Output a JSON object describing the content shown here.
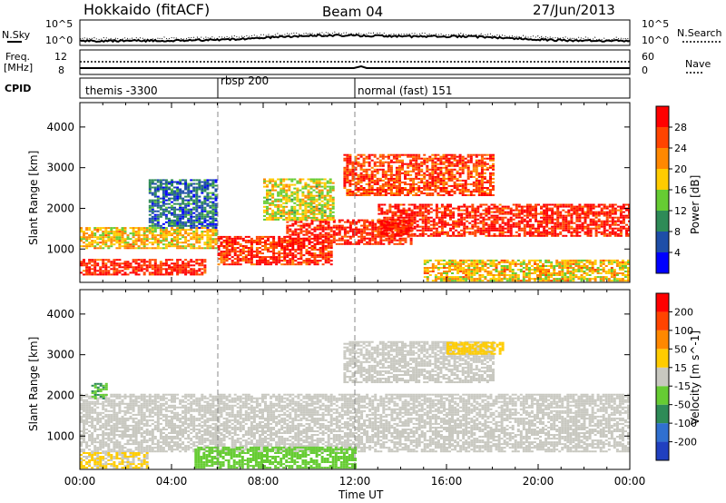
{
  "header": {
    "title": "Hokkaido (fitACF)",
    "beam": "Beam 04",
    "date": "27/Jun/2013"
  },
  "noise_panel": {
    "left_label": "N.Sky",
    "right_label": "N.Search",
    "y_top_label": "10^5",
    "y_bottom_label": "10^0",
    "legend_style": "dotted"
  },
  "freq_panel": {
    "left_label_line1": "Freq.",
    "left_label_line2": "[MHz]",
    "left_ticks": [
      "12",
      "8"
    ],
    "right_label": "Nave",
    "right_ticks": [
      "60",
      "0"
    ],
    "legend_style": "dotted"
  },
  "cpid_panel": {
    "label": "CPID",
    "modes": [
      {
        "name": "themis -3300",
        "start_hour": 0
      },
      {
        "name": "rbsp 200",
        "start_hour": 6
      },
      {
        "name": "normal (fast) 151",
        "start_hour": 12
      }
    ]
  },
  "chart_data": [
    {
      "type": "heatmap",
      "title": "",
      "quantity": "Power",
      "ylabel": "Slant Range [km]",
      "xlabel": "",
      "xlim_hours": [
        0,
        24
      ],
      "ylim": [
        180,
        4600
      ],
      "yticks": [
        1000,
        2000,
        3000,
        4000
      ],
      "colorbar": {
        "label": "Power [dB]",
        "ticks": [
          "4",
          "8",
          "12",
          "16",
          "20",
          "24",
          "28"
        ],
        "range": [
          0,
          30
        ],
        "colors": [
          "#0000ff",
          "#1e4ea8",
          "#2e8b57",
          "#66cc33",
          "#ffcc00",
          "#ff8800",
          "#ff4400",
          "#ff0000"
        ]
      },
      "features": [
        {
          "start_hour": 0.0,
          "end_hour": 5.5,
          "range_km": [
            350,
            750
          ],
          "db": 27
        },
        {
          "start_hour": 0.0,
          "end_hour": 6.0,
          "range_km": [
            1000,
            1500
          ],
          "db": 18
        },
        {
          "start_hour": 3.0,
          "end_hour": 6.0,
          "range_km": [
            1500,
            2700
          ],
          "db": 7
        },
        {
          "start_hour": 6.0,
          "end_hour": 11.0,
          "range_km": [
            600,
            1300
          ],
          "db": 26
        },
        {
          "start_hour": 9.0,
          "end_hour": 14.5,
          "range_km": [
            1100,
            1700
          ],
          "db": 27
        },
        {
          "start_hour": 11.5,
          "end_hour": 18.0,
          "range_km": [
            2300,
            3300
          ],
          "db": 25
        },
        {
          "start_hour": 13.0,
          "end_hour": 24.0,
          "range_km": [
            1300,
            2100
          ],
          "db": 27
        },
        {
          "start_hour": 8.0,
          "end_hour": 11.0,
          "range_km": [
            1700,
            2700
          ],
          "db": 16
        },
        {
          "start_hour": 15.0,
          "end_hour": 24.0,
          "range_km": [
            200,
            700
          ],
          "db": 18
        }
      ]
    },
    {
      "type": "heatmap",
      "title": "",
      "quantity": "Velocity",
      "ylabel": "Slant Range [km]",
      "xlabel": "Time UT",
      "xlim_hours": [
        0,
        24
      ],
      "ylim": [
        180,
        4600
      ],
      "yticks": [
        1000,
        2000,
        3000,
        4000
      ],
      "xtick_labels": [
        "00:00",
        "04:00",
        "08:00",
        "12:00",
        "16:00",
        "20:00",
        "00:00"
      ],
      "colorbar": {
        "label": "Velocity [m s^-1]",
        "ticks": [
          "200",
          "100",
          "50",
          "15",
          "-15",
          "-50",
          "-100",
          "-200"
        ],
        "range": [
          -250,
          250
        ],
        "colors": [
          "#2040c0",
          "#3070d0",
          "#2e8b57",
          "#66cc33",
          "#c8c8c0",
          "#ffcc00",
          "#ff8800",
          "#ff4400",
          "#ff0000"
        ]
      },
      "features": [
        {
          "start_hour": 0.0,
          "end_hour": 24.0,
          "range_km": [
            600,
            2000
          ],
          "velocity": 0
        },
        {
          "start_hour": 11.5,
          "end_hour": 18.0,
          "range_km": [
            2300,
            3300
          ],
          "velocity": 0
        },
        {
          "start_hour": 16.0,
          "end_hour": 18.5,
          "range_km": [
            3000,
            3300
          ],
          "velocity": 40
        },
        {
          "start_hour": 0.0,
          "end_hour": 3.0,
          "range_km": [
            200,
            600
          ],
          "velocity": 30
        },
        {
          "start_hour": 0.5,
          "end_hour": 1.2,
          "range_km": [
            1900,
            2300
          ],
          "velocity": -80
        },
        {
          "start_hour": 5.0,
          "end_hour": 12.0,
          "range_km": [
            200,
            700
          ],
          "velocity": -40
        }
      ]
    }
  ]
}
